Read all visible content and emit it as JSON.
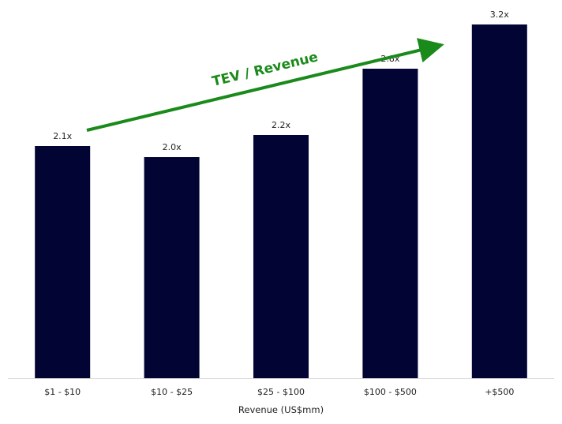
{
  "chart_data": {
    "type": "bar",
    "categories": [
      "$1 - $10",
      "$10 - $25",
      "$25 - $100",
      "$100 - $500",
      "+$500"
    ],
    "values": [
      2.1,
      2.0,
      2.2,
      2.8,
      3.2
    ],
    "data_labels": [
      "2.1x",
      "2.0x",
      "2.2x",
      "2.8x",
      "3.2x"
    ],
    "xlabel": "Revenue (US$mm)",
    "ylabel": "",
    "ylim": [
      0,
      3.2
    ],
    "grid": false,
    "legend": "none",
    "bar_color": "#020433",
    "annotation": {
      "text": "TEV / Revenue",
      "color": "#1a8a1a",
      "shape": "arrow"
    }
  }
}
